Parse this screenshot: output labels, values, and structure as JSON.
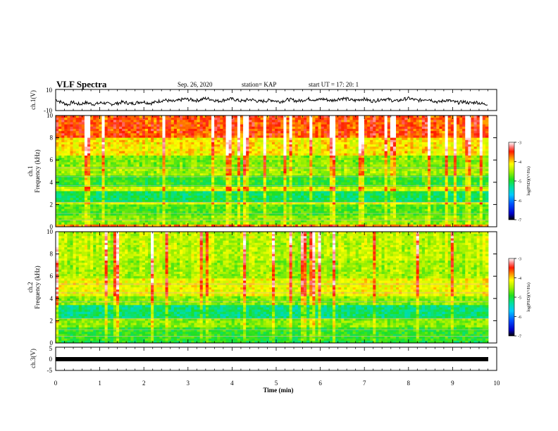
{
  "header": {
    "title": "VLF Spectra",
    "date": "Sep. 26, 2020",
    "station": "station= KAP",
    "start": "start  UT =   17: 20: 1"
  },
  "chart_data": [
    {
      "type": "line",
      "ylabel": "ch.1(V)",
      "ylim": [
        -10,
        10
      ],
      "yticks": [
        "10",
        "-10"
      ],
      "xlim": [
        0,
        10
      ],
      "description_none": "",
      "series": [
        {
          "values": [
            0.5,
            -1.5,
            -3,
            -4.5,
            -2,
            -3.5,
            -4,
            -2.5,
            -3,
            -4,
            -3.5,
            -2.5,
            -3,
            -4,
            -3.5,
            -3,
            -2,
            -2.5,
            -3.5,
            -3,
            -2,
            -1.5,
            -2.5,
            -3,
            -2,
            -1,
            0,
            -0.5,
            -1.5,
            -1,
            0,
            1,
            0.5,
            0,
            -0.5,
            0.5,
            1.5,
            1,
            0,
            -1,
            -0.5,
            0.5,
            1,
            0.5,
            -0.5,
            -1,
            0,
            0.5,
            -0.5,
            -1.5,
            -1,
            -0.5,
            0,
            -1,
            -1.5,
            -0.5,
            0.5,
            0,
            -1,
            -0.5,
            0.5,
            1,
            0.5,
            0,
            1,
            0.5,
            -0.5,
            0,
            1,
            1.5,
            1,
            0,
            -0.5,
            0.5,
            1,
            0,
            -1,
            -0.5,
            0.5,
            1,
            0.5,
            -0.5,
            -1,
            0,
            1,
            1.5,
            0.5,
            -0.5,
            0,
            1,
            0.5,
            -1,
            -2,
            -1,
            0,
            -1,
            -2,
            -2.5,
            -1.5,
            -2.5,
            -3,
            -2,
            -3,
            -4,
            -3.5
          ]
        }
      ]
    },
    {
      "type": "heatmap",
      "ylabel": "ch.1\nFrequency  (kHz)",
      "ylim": [
        0,
        10
      ],
      "yticks": [
        "0",
        "2",
        "4",
        "6",
        "8",
        "10"
      ],
      "xlim": [
        0,
        10
      ],
      "colorbar": {
        "label": "log(PSD)(V²/Hz)",
        "range": [
          -7,
          -3
        ],
        "ticks": [
          "-3",
          "-4",
          "-5",
          "-6",
          "-7"
        ]
      },
      "bands": [
        {
          "from": 0,
          "to": 0.3,
          "level": -3.8
        },
        {
          "from": 0.3,
          "to": 1.0,
          "level": -4.6
        },
        {
          "from": 1.0,
          "to": 2.0,
          "level": -4.8
        },
        {
          "from": 2.0,
          "to": 2.3,
          "level": -4.3
        },
        {
          "from": 2.3,
          "to": 3.3,
          "level": -5.1
        },
        {
          "from": 3.3,
          "to": 3.6,
          "level": -4.3
        },
        {
          "from": 3.6,
          "to": 4.6,
          "level": -4.9
        },
        {
          "from": 4.6,
          "to": 5.2,
          "level": -4.5
        },
        {
          "from": 5.2,
          "to": 6.5,
          "level": -4.6
        },
        {
          "from": 6.5,
          "to": 8.0,
          "level": -4.1
        },
        {
          "from": 8.0,
          "to": 10.0,
          "level": -3.6
        }
      ]
    },
    {
      "type": "heatmap",
      "ylabel": "ch.2\nFrequency  (kHz)",
      "ylim": [
        0,
        10
      ],
      "yticks": [
        "0",
        "2",
        "4",
        "6",
        "8",
        "10"
      ],
      "xlim": [
        0,
        10
      ],
      "colorbar": {
        "label": "log(PSD)(V²/Hz)",
        "range": [
          -7,
          -3
        ],
        "ticks": [
          "-3",
          "-4",
          "-5",
          "-6",
          "-7"
        ]
      },
      "bands": [
        {
          "from": 0,
          "to": 0.3,
          "level": -5.0
        },
        {
          "from": 0.3,
          "to": 1.5,
          "level": -4.9
        },
        {
          "from": 1.5,
          "to": 2.2,
          "level": -4.6
        },
        {
          "from": 2.2,
          "to": 3.5,
          "level": -5.2
        },
        {
          "from": 3.5,
          "to": 4.2,
          "level": -4.6
        },
        {
          "from": 4.2,
          "to": 5.8,
          "level": -4.2
        },
        {
          "from": 5.8,
          "to": 7.5,
          "level": -4.5
        },
        {
          "from": 7.5,
          "to": 10.0,
          "level": -4.4
        }
      ]
    },
    {
      "type": "line",
      "ylabel": "ch.3(V)",
      "ylim": [
        -5,
        5
      ],
      "yticks": [
        "5",
        "0",
        "-5"
      ],
      "xlim": [
        0,
        10
      ],
      "series": [
        {
          "values": [
            0,
            0
          ]
        }
      ]
    }
  ],
  "xaxis": {
    "label": "Time  (min)",
    "ticks": [
      "0",
      "1",
      "2",
      "3",
      "4",
      "5",
      "6",
      "7",
      "8",
      "9",
      "10"
    ]
  }
}
